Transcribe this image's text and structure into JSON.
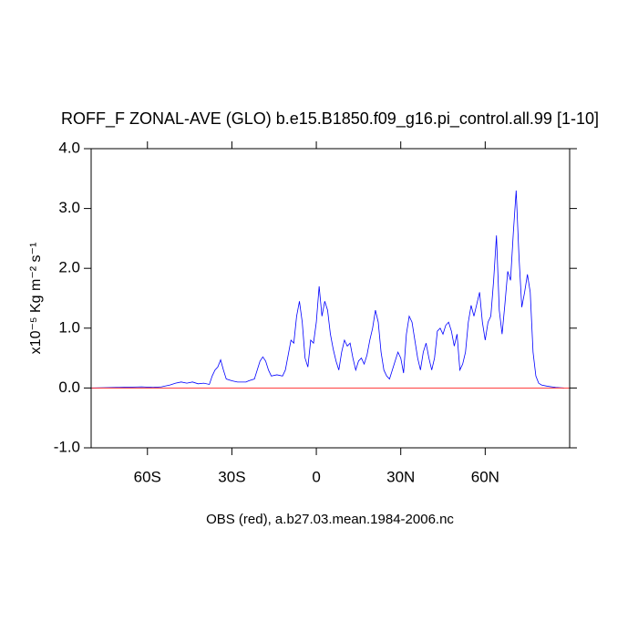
{
  "chart_data": {
    "type": "line",
    "title": "ROFF_F ZONAL-AVE (GLO) b.e15.B1850.f09_g16.pi_control.all.99 [1-10]",
    "y_label": "x10⁻⁵ Kg m⁻² s⁻¹",
    "subtitle": "OBS (red), a.b27.03.mean.1984-2006.nc",
    "xlim": [
      -80,
      90
    ],
    "ylim": [
      -1,
      4
    ],
    "xticks": [
      {
        "value": -60,
        "label": "60S"
      },
      {
        "value": -30,
        "label": "30S"
      },
      0,
      {
        "value": 30,
        "label": "30N"
      },
      {
        "value": 60,
        "label": "60N"
      }
    ],
    "yticks": [
      {
        "value": -1,
        "label": "-1.0"
      },
      {
        "value": 0,
        "label": "0.0"
      },
      {
        "value": 1,
        "label": "1.0"
      },
      {
        "value": 2,
        "label": "2.0"
      },
      {
        "value": 3,
        "label": "3.0"
      },
      {
        "value": 4,
        "label": "4.0"
      }
    ],
    "series": [
      {
        "color": "#0000ff",
        "x": [
          -80,
          -70,
          -62,
          -58,
          -55,
          -52,
          -50,
          -48,
          -46,
          -44,
          -42,
          -40,
          -38,
          -37,
          -36,
          -35,
          -34,
          -33,
          -32,
          -30,
          -28,
          -26,
          -25,
          -24,
          -22,
          -21,
          -20,
          -19,
          -18,
          -17,
          -16,
          -14,
          -12,
          -11,
          -10,
          -9,
          -8,
          -7,
          -6,
          -5,
          -4,
          -3,
          -2,
          -1,
          0,
          1,
          2,
          3,
          4,
          5,
          6,
          7,
          8,
          9,
          10,
          11,
          12,
          13,
          14,
          15,
          16,
          17,
          18,
          19,
          20,
          21,
          22,
          23,
          24,
          25,
          26,
          27,
          28,
          29,
          30,
          31,
          32,
          33,
          34,
          35,
          36,
          37,
          38,
          39,
          40,
          41,
          42,
          43,
          44,
          45,
          46,
          47,
          48,
          49,
          50,
          51,
          52,
          53,
          54,
          55,
          56,
          57,
          58,
          59,
          60,
          61,
          62,
          63,
          64,
          65,
          66,
          67,
          68,
          69,
          70,
          71,
          72,
          73,
          74,
          75,
          76,
          77,
          78,
          79,
          80,
          82,
          85,
          88
        ],
        "values": [
          0,
          0.01,
          0.02,
          0.01,
          0.02,
          0.05,
          0.08,
          0.1,
          0.08,
          0.1,
          0.07,
          0.08,
          0.06,
          0.2,
          0.3,
          0.35,
          0.47,
          0.3,
          0.15,
          0.12,
          0.1,
          0.1,
          0.1,
          0.12,
          0.15,
          0.3,
          0.45,
          0.52,
          0.45,
          0.3,
          0.2,
          0.22,
          0.2,
          0.3,
          0.55,
          0.8,
          0.75,
          1.2,
          1.45,
          1.1,
          0.5,
          0.35,
          0.8,
          0.75,
          1.1,
          1.7,
          1.2,
          1.45,
          1.3,
          0.9,
          0.65,
          0.45,
          0.3,
          0.6,
          0.8,
          0.7,
          0.75,
          0.5,
          0.3,
          0.45,
          0.5,
          0.4,
          0.55,
          0.8,
          1.0,
          1.3,
          1.1,
          0.6,
          0.3,
          0.2,
          0.15,
          0.3,
          0.45,
          0.6,
          0.5,
          0.25,
          0.9,
          1.2,
          1.1,
          0.8,
          0.5,
          0.3,
          0.6,
          0.75,
          0.5,
          0.3,
          0.5,
          0.95,
          1.0,
          0.9,
          1.05,
          1.1,
          0.95,
          0.7,
          0.9,
          0.3,
          0.4,
          0.6,
          1.1,
          1.38,
          1.2,
          1.4,
          1.6,
          1.1,
          0.8,
          1.1,
          1.2,
          1.8,
          2.55,
          1.3,
          0.9,
          1.4,
          1.95,
          1.8,
          2.6,
          3.3,
          2.2,
          1.35,
          1.6,
          1.9,
          1.6,
          0.6,
          0.2,
          0.08,
          0.05,
          0.03,
          0.01,
          0
        ]
      },
      {
        "color": "#ff0000",
        "x": [
          -80,
          90
        ],
        "values": [
          0,
          0
        ]
      }
    ]
  }
}
